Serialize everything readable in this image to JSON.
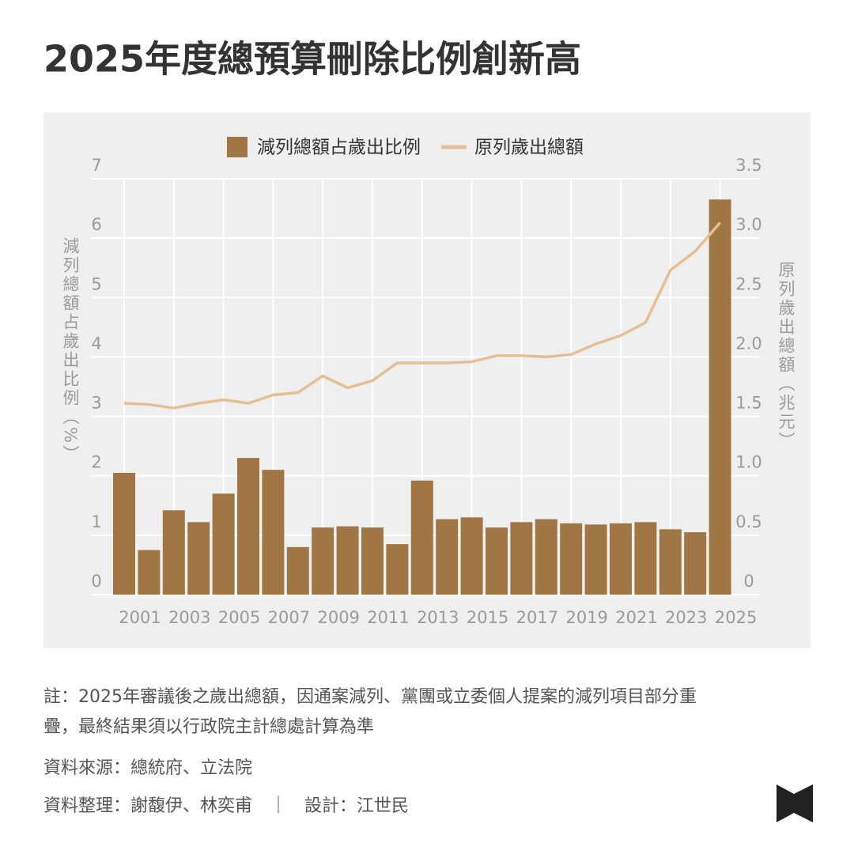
{
  "chart_data": {
    "type": "bar-line",
    "title": "2025年度總預算刪除比例創新高",
    "categories": [
      "2001",
      null,
      "2003",
      null,
      "2005",
      null,
      "2007",
      null,
      "2009",
      null,
      "2011",
      null,
      "2013",
      null,
      "2015",
      null,
      "2017",
      null,
      "2019",
      null,
      "2021",
      null,
      "2023",
      null,
      "2025"
    ],
    "series": [
      {
        "name": "減列總額占歲出比例",
        "color": "#a07744",
        "type": "bar",
        "values": [
          2.05,
          0.75,
          1.42,
          1.22,
          1.7,
          2.3,
          2.1,
          0.8,
          1.13,
          1.15,
          1.13,
          0.85,
          1.92,
          1.27,
          1.3,
          1.13,
          1.22,
          1.27,
          1.2,
          1.18,
          1.2,
          1.22,
          1.1,
          1.05,
          6.65
        ]
      },
      {
        "name": "原列歲出總額",
        "color": "#e5bf94",
        "type": "line",
        "axis": "y2",
        "values": [
          1.61,
          1.6,
          1.57,
          1.61,
          1.64,
          1.61,
          1.68,
          1.7,
          1.84,
          1.74,
          1.8,
          1.95,
          1.95,
          1.95,
          1.96,
          2.01,
          2.01,
          2.0,
          2.02,
          2.11,
          2.18,
          2.29,
          2.73,
          2.89,
          3.13
        ]
      }
    ],
    "ylabel": "減列總額占歲出比例（%）",
    "y2label": "原列歲出總額（兆元）",
    "ylim": [
      0,
      7
    ],
    "yticks": [
      0,
      1,
      2,
      3,
      4,
      5,
      6,
      7
    ],
    "y2lim": [
      0,
      3.5
    ],
    "y2ticks": [
      0,
      0.5,
      {
        "value": 1,
        "label": "1.0"
      },
      1.5,
      {
        "value": 2,
        "label": "2.0"
      },
      2.5,
      {
        "value": 3,
        "label": "3.0"
      },
      3.5
    ],
    "grid": true,
    "legend": "top",
    "notes": [
      "註：2025年審議後之歲出總額，因通案減列、黨團或立委個人提案的減列項目部分重",
      "疊，最終結果須以行政院主計總處計算為準"
    ],
    "source": "資料來源：總統府、立法院",
    "credits": "資料整理：謝馥伊、林奕甫　｜　設計：江世民"
  }
}
